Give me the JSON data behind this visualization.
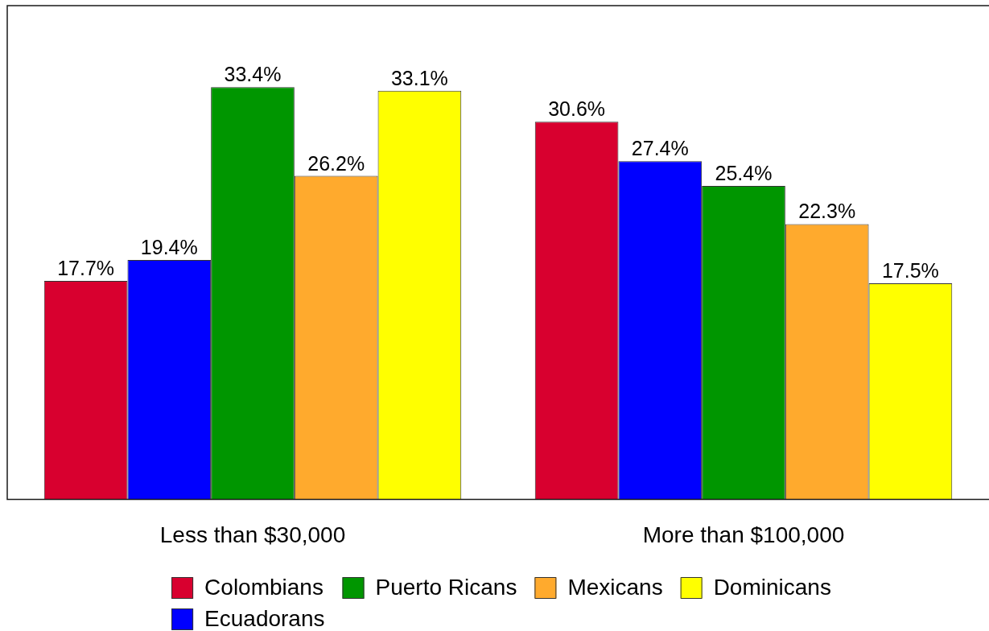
{
  "chart_data": {
    "type": "bar",
    "categories": [
      "Less than $30,000",
      "More than $100,000"
    ],
    "series": [
      {
        "name": "Colombians",
        "color": "#d8002f",
        "values": [
          17.7,
          30.6
        ],
        "value_labels": [
          "17.7%",
          "30.6%"
        ]
      },
      {
        "name": "Ecuadorans",
        "color": "#0000ff",
        "values": [
          19.4,
          27.4
        ],
        "value_labels": [
          "19.4%",
          "27.4%"
        ]
      },
      {
        "name": "Puerto Ricans",
        "color": "#009600",
        "values": [
          33.4,
          25.4
        ],
        "value_labels": [
          "33.4%",
          "25.4%"
        ]
      },
      {
        "name": "Mexicans",
        "color": "#ffaa2d",
        "values": [
          26.2,
          22.3
        ],
        "value_labels": [
          "26.2%",
          "22.3%"
        ]
      },
      {
        "name": "Dominicans",
        "color": "#ffff00",
        "values": [
          33.1,
          17.5
        ],
        "value_labels": [
          "33.1%",
          "17.5%"
        ]
      }
    ],
    "legend": "bottom",
    "tick_labels": "x"
  }
}
